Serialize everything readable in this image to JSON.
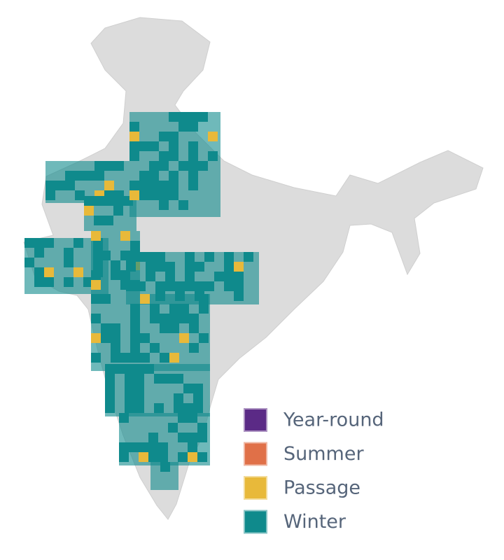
{
  "legend": {
    "items": [
      {
        "label": "Year-round",
        "color": "#5b2a86"
      },
      {
        "label": "Summer",
        "color": "#e07048"
      },
      {
        "label": "Passage",
        "color": "#e8b93a"
      },
      {
        "label": "Winter",
        "color": "#0f8a8c"
      }
    ]
  }
}
